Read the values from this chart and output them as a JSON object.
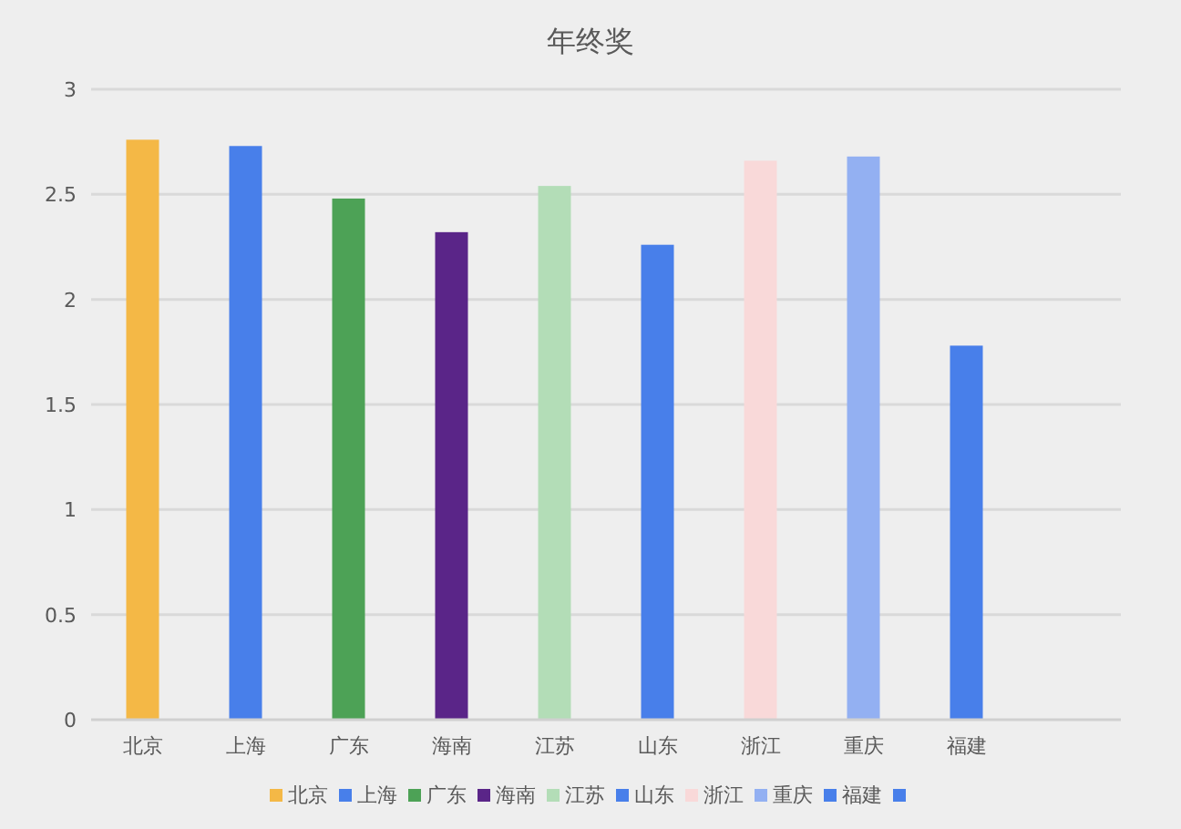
{
  "chart_data": {
    "type": "bar",
    "title": "年终奖",
    "categories": [
      "北京",
      "上海",
      "广东",
      "海南",
      "江苏",
      "山东",
      "浙江",
      "重庆",
      "福建",
      null
    ],
    "series": [
      {
        "name": "北京",
        "color": "#f4b846",
        "values": [
          2.76,
          null,
          null,
          null,
          null,
          null,
          null,
          null,
          null,
          null
        ]
      },
      {
        "name": "上海",
        "color": "#487fea",
        "values": [
          null,
          2.73,
          null,
          null,
          null,
          null,
          null,
          null,
          null,
          null
        ]
      },
      {
        "name": "广东",
        "color": "#4da256",
        "values": [
          null,
          null,
          2.48,
          null,
          null,
          null,
          null,
          null,
          null,
          null
        ]
      },
      {
        "name": "海南",
        "color": "#5a2588",
        "values": [
          null,
          null,
          null,
          2.32,
          null,
          null,
          null,
          null,
          null,
          null
        ]
      },
      {
        "name": "江苏",
        "color": "#b3ddb7",
        "values": [
          null,
          null,
          null,
          null,
          2.54,
          null,
          null,
          null,
          null,
          null
        ]
      },
      {
        "name": "山东",
        "color": "#487fea",
        "values": [
          null,
          null,
          null,
          null,
          null,
          2.26,
          null,
          null,
          null,
          null
        ]
      },
      {
        "name": "浙江",
        "color": "#f9d9d9",
        "values": [
          null,
          null,
          null,
          null,
          null,
          null,
          2.66,
          null,
          null,
          null
        ]
      },
      {
        "name": "重庆",
        "color": "#93b0f2",
        "values": [
          null,
          null,
          null,
          null,
          null,
          null,
          null,
          2.68,
          null,
          null
        ]
      },
      {
        "name": "福建",
        "color": "#487fea",
        "values": [
          null,
          null,
          null,
          null,
          null,
          null,
          null,
          null,
          1.78,
          null
        ]
      },
      {
        "color": "#487fea",
        "values": [
          null,
          null,
          null,
          null,
          null,
          null,
          null,
          null,
          null,
          null
        ]
      }
    ],
    "ylim": [
      0,
      3
    ],
    "yticks": [
      0,
      0.5,
      1,
      1.5,
      2,
      2.5,
      3
    ],
    "grid": "y",
    "legend": "bottom"
  }
}
